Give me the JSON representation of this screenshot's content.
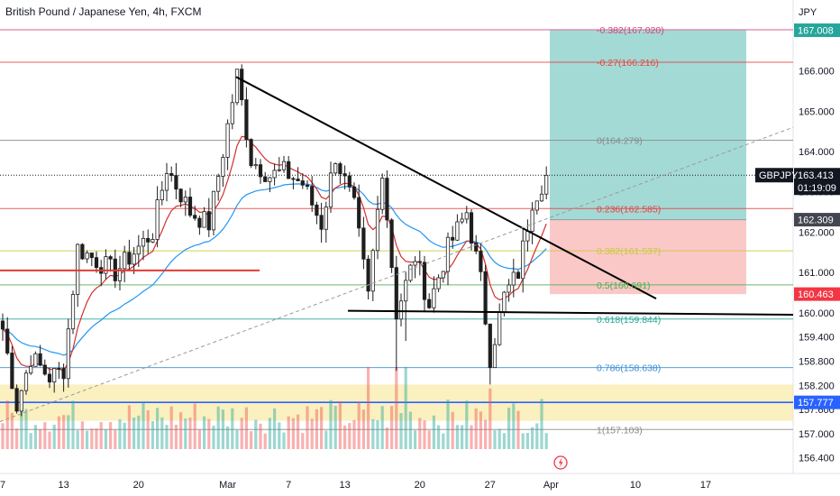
{
  "header": {
    "title": "British Pound / Japanese Yen, 4h, FXCM"
  },
  "price_axis": {
    "currency": "JPY",
    "ticks": [
      "166.000",
      "165.000",
      "164.000",
      "163.000",
      "162.000",
      "161.000",
      "160.000",
      "159.400",
      "158.800",
      "158.200",
      "157.600",
      "157.000",
      "156.400"
    ]
  },
  "time_axis": {
    "labels": [
      {
        "text": "7",
        "idx": 0
      },
      {
        "text": "13",
        "idx": 13
      },
      {
        "text": "20",
        "idx": 29
      },
      {
        "text": "Mar",
        "idx": 48
      },
      {
        "text": "7",
        "idx": 61
      },
      {
        "text": "13",
        "idx": 73
      },
      {
        "text": "20",
        "idx": 89
      },
      {
        "text": "27",
        "idx": 104
      },
      {
        "text": "Apr",
        "idx": 117
      },
      {
        "text": "10",
        "idx": 135
      },
      {
        "text": "17",
        "idx": 150
      }
    ]
  },
  "badges": {
    "tp_target": {
      "text": "167.008",
      "color": "#26a69a"
    },
    "symbol": {
      "text": "GBPJPY",
      "color": "#131722"
    },
    "last_price": {
      "text": "163.413",
      "color": "#131722"
    },
    "countdown": {
      "text": "01:19:09",
      "color": "#131722"
    },
    "entry": {
      "text": "162.309",
      "color": "#434651"
    },
    "stop": {
      "text": "160.463",
      "color": "#f23645"
    },
    "blue_level": {
      "text": "157.777",
      "color": "#2962ff"
    }
  },
  "fib_levels": [
    {
      "label": "-0.382(167.020)",
      "price": 167.02,
      "color": "#d1477a"
    },
    {
      "label": "-0.27(166.216)",
      "price": 166.216,
      "color": "#e84141"
    },
    {
      "label": "0(164.279)",
      "price": 164.279,
      "color": "#8a8a8a"
    },
    {
      "label": "0.236(162.585)",
      "price": 162.585,
      "color": "#e84141"
    },
    {
      "label": "0.382(161.537)",
      "price": 161.537,
      "color": "#c9c93a"
    },
    {
      "label": "0.5(160.691)",
      "price": 160.691,
      "color": "#4caf50"
    },
    {
      "label": "0.618(159.844)",
      "price": 159.844,
      "color": "#26a69a"
    },
    {
      "label": "0.786(158.638)",
      "price": 158.638,
      "color": "#3a8fd6"
    },
    {
      "label": "1(157.103)",
      "price": 157.103,
      "color": "#8a8a8a"
    }
  ],
  "colors": {
    "up": "#26a69a",
    "down": "#ef5350",
    "candle_body": "#1e1e1e",
    "ema_fast": "#d32f2f",
    "ema_slow": "#2196f3",
    "tp_zone": "rgba(38,166,154,0.42)",
    "sl_zone": "rgba(239,83,80,0.32)",
    "support_zone": "rgba(245,228,140,0.55)"
  },
  "chart_data": {
    "type": "candlestick",
    "symbol": "GBPJPY",
    "timeframe": "4h",
    "ylim": [
      156.2,
      167.45
    ],
    "current_price": 163.413,
    "position": {
      "target": 167.008,
      "entry": 162.309,
      "stop": 160.463
    },
    "horizontal_levels": [
      157.777,
      160.02
    ],
    "ohlc_sampled": [
      {
        "idx": 0,
        "close": 159.6
      },
      {
        "idx": 3,
        "close": 157.7
      },
      {
        "idx": 6,
        "close": 158.9
      },
      {
        "idx": 10,
        "close": 158.4
      },
      {
        "idx": 13,
        "close": 158.6
      },
      {
        "idx": 16,
        "close": 161.6
      },
      {
        "idx": 20,
        "close": 161.3
      },
      {
        "idx": 24,
        "close": 161.0
      },
      {
        "idx": 28,
        "close": 161.5
      },
      {
        "idx": 32,
        "close": 162.0
      },
      {
        "idx": 35,
        "close": 163.6
      },
      {
        "idx": 40,
        "close": 162.5
      },
      {
        "idx": 44,
        "close": 162.2
      },
      {
        "idx": 47,
        "close": 164.0
      },
      {
        "idx": 50,
        "close": 165.9
      },
      {
        "idx": 53,
        "close": 163.8
      },
      {
        "idx": 57,
        "close": 163.4
      },
      {
        "idx": 60,
        "close": 163.5
      },
      {
        "idx": 64,
        "close": 163.2
      },
      {
        "idx": 68,
        "close": 162.2
      },
      {
        "idx": 71,
        "close": 163.9
      },
      {
        "idx": 75,
        "close": 162.6
      },
      {
        "idx": 78,
        "close": 160.4
      },
      {
        "idx": 81,
        "close": 163.6
      },
      {
        "idx": 84,
        "close": 160.0
      },
      {
        "idx": 88,
        "close": 161.4
      },
      {
        "idx": 91,
        "close": 160.2
      },
      {
        "idx": 95,
        "close": 161.6
      },
      {
        "idx": 99,
        "close": 162.5
      },
      {
        "idx": 102,
        "close": 160.8
      },
      {
        "idx": 104,
        "close": 158.9
      },
      {
        "idx": 107,
        "close": 160.4
      },
      {
        "idx": 110,
        "close": 161.0
      },
      {
        "idx": 113,
        "close": 162.8
      },
      {
        "idx": 116,
        "close": 163.41
      }
    ]
  }
}
